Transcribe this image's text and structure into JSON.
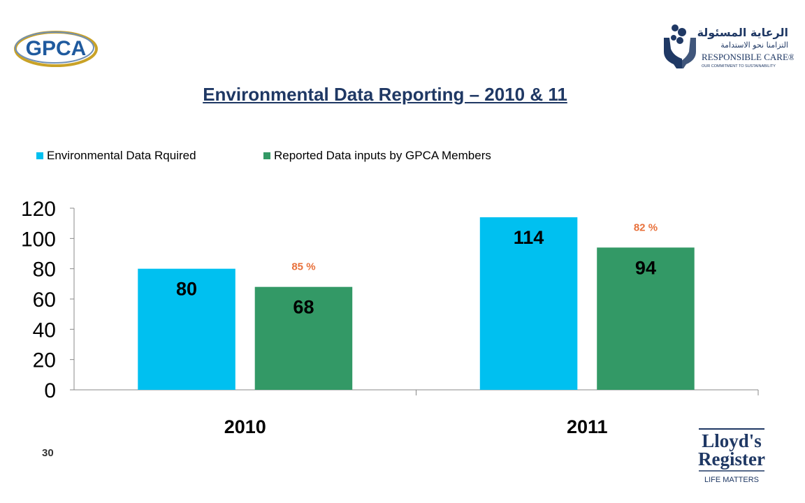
{
  "header": {
    "gpca_logo_text": "GPCA",
    "rc_logo_arabic_line1": "الرعاية المسئولة",
    "rc_logo_arabic_line2": "التزامنا نحو الاستدامة",
    "rc_logo_text": "RESPONSIBLE CARE®",
    "rc_logo_tagline": "OUR COMMITMENT TO SUSTAINABILITY"
  },
  "title": "Environmental Data Reporting – 2010 & 11",
  "footer": {
    "page_number": "30",
    "lr_logo_line1": "Lloyd's",
    "lr_logo_line2": "Register",
    "lr_logo_tagline": "LIFE MATTERS"
  },
  "colors": {
    "required": "#00c0f0",
    "reported": "#339966",
    "percent": "#e8703a",
    "title": "#1f3864"
  },
  "chart_data": {
    "type": "bar",
    "categories": [
      "2010",
      "2011"
    ],
    "series": [
      {
        "name": "Environmental Data Rquired",
        "values": [
          80,
          114
        ],
        "labels": [
          "80",
          "114"
        ]
      },
      {
        "name": "Reported Data inputs by GPCA Members",
        "values": [
          68,
          94
        ],
        "labels": [
          "68",
          "94"
        ]
      }
    ],
    "annotations": [
      "85 %",
      "82 %"
    ],
    "yticks": [
      "0",
      "20",
      "40",
      "60",
      "80",
      "100",
      "120"
    ],
    "ylim": [
      0,
      120
    ],
    "grid": false,
    "legend_position": "top-left"
  }
}
